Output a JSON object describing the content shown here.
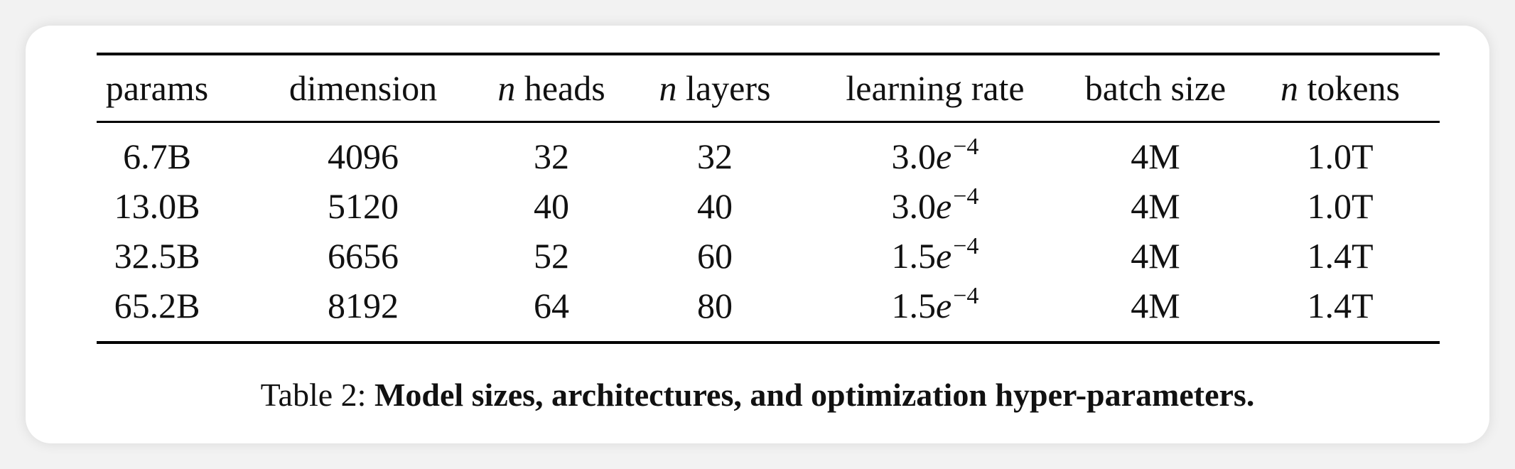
{
  "table": {
    "headers": [
      {
        "prefix": "",
        "text": "params"
      },
      {
        "prefix": "",
        "text": "dimension"
      },
      {
        "prefix": "n",
        "text": " heads"
      },
      {
        "prefix": "n",
        "text": " layers"
      },
      {
        "prefix": "",
        "text": "learning rate"
      },
      {
        "prefix": "",
        "text": "batch size"
      },
      {
        "prefix": "n",
        "text": " tokens"
      }
    ],
    "rows": [
      {
        "params": "6.7B",
        "dimension": "4096",
        "heads": "32",
        "layers": "32",
        "lr_mantissa": "3.0",
        "lr_base": "e",
        "lr_exp": "−4",
        "batch": "4M",
        "tokens": "1.0T"
      },
      {
        "params": "13.0B",
        "dimension": "5120",
        "heads": "40",
        "layers": "40",
        "lr_mantissa": "3.0",
        "lr_base": "e",
        "lr_exp": "−4",
        "batch": "4M",
        "tokens": "1.0T"
      },
      {
        "params": "32.5B",
        "dimension": "6656",
        "heads": "52",
        "layers": "60",
        "lr_mantissa": "1.5",
        "lr_base": "e",
        "lr_exp": "−4",
        "batch": "4M",
        "tokens": "1.4T"
      },
      {
        "params": "65.2B",
        "dimension": "8192",
        "heads": "64",
        "layers": "80",
        "lr_mantissa": "1.5",
        "lr_base": "e",
        "lr_exp": "−4",
        "batch": "4M",
        "tokens": "1.4T"
      }
    ]
  },
  "caption": {
    "label": "Table 2: ",
    "text": "Model sizes, architectures, and optimization hyper-parameters."
  }
}
